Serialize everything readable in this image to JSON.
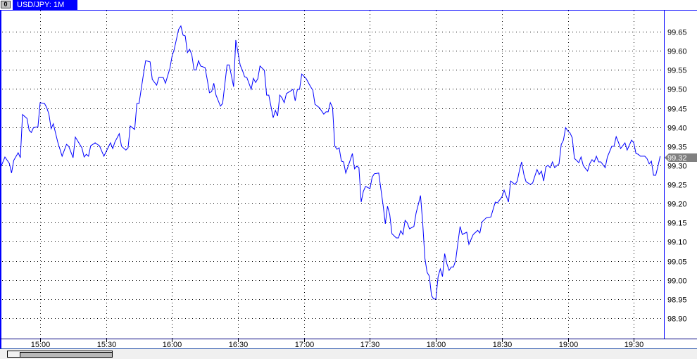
{
  "window": {
    "tab_label": "USD/JPY: 1M",
    "tab_icon": "chart-window-icon",
    "tab_icon_glyph": "0"
  },
  "colors": {
    "line": "#0000ff",
    "frame": "#0000ff",
    "axis_line": "#000080",
    "grid": "#000000",
    "price_badge": "#808080"
  },
  "chart_data": {
    "type": "line",
    "symbol": "USD/JPY",
    "timeframe": "1M",
    "grid": true,
    "y_axis_position": "right",
    "ylim": [
      98.85,
      99.69
    ],
    "xlim": [
      "14:42",
      "19:42"
    ],
    "y_ticks": [
      "99.65",
      "99.60",
      "99.55",
      "99.50",
      "99.45",
      "99.40",
      "99.35",
      "99.30",
      "99.25",
      "99.20",
      "99.15",
      "99.10",
      "99.05",
      "99.00",
      "98.95",
      "98.90"
    ],
    "x_ticks": [
      "15:00",
      "15:30",
      "16:00",
      "16:30",
      "17:00",
      "17:30",
      "18:00",
      "18:30",
      "19:00",
      "19:30"
    ],
    "current_price": "99.32",
    "points": [
      [
        "14:42",
        99.294
      ],
      [
        "14:44",
        99.322
      ],
      [
        "14:46",
        99.305
      ],
      [
        "14:47",
        99.28
      ],
      [
        "14:48",
        99.313
      ],
      [
        "14:50",
        99.333
      ],
      [
        "14:51",
        99.32
      ],
      [
        "14:52",
        99.433
      ],
      [
        "14:54",
        99.423
      ],
      [
        "14:55",
        99.392
      ],
      [
        "14:56",
        99.386
      ],
      [
        "14:57",
        99.399
      ],
      [
        "14:59",
        99.401
      ],
      [
        "15:00",
        99.464
      ],
      [
        "15:02",
        99.462
      ],
      [
        "15:03",
        99.451
      ],
      [
        "15:04",
        99.434
      ],
      [
        "15:05",
        99.396
      ],
      [
        "15:06",
        99.409
      ],
      [
        "15:08",
        99.361
      ],
      [
        "15:10",
        99.324
      ],
      [
        "15:12",
        99.355
      ],
      [
        "15:13",
        99.35
      ],
      [
        "15:15",
        99.32
      ],
      [
        "15:16",
        99.374
      ],
      [
        "15:19",
        99.346
      ],
      [
        "15:20",
        99.322
      ],
      [
        "15:21",
        99.329
      ],
      [
        "15:22",
        99.324
      ],
      [
        "15:23",
        99.351
      ],
      [
        "15:25",
        99.359
      ],
      [
        "15:27",
        99.351
      ],
      [
        "15:29",
        99.324
      ],
      [
        "15:32",
        99.359
      ],
      [
        "15:33",
        99.344
      ],
      [
        "15:34",
        99.361
      ],
      [
        "15:36",
        99.383
      ],
      [
        "15:37",
        99.35
      ],
      [
        "15:39",
        99.34
      ],
      [
        "15:40",
        99.346
      ],
      [
        "15:41",
        99.403
      ],
      [
        "15:43",
        99.394
      ],
      [
        "15:44",
        99.462
      ],
      [
        "15:45",
        99.462
      ],
      [
        "15:47",
        99.539
      ],
      [
        "15:48",
        99.574
      ],
      [
        "15:50",
        99.571
      ],
      [
        "15:51",
        99.525
      ],
      [
        "15:53",
        99.51
      ],
      [
        "15:54",
        99.53
      ],
      [
        "15:56",
        99.53
      ],
      [
        "15:57",
        99.515
      ],
      [
        "15:59",
        99.554
      ],
      [
        "16:00",
        99.586
      ],
      [
        "16:01",
        99.604
      ],
      [
        "16:03",
        99.656
      ],
      [
        "16:04",
        99.665
      ],
      [
        "16:05",
        99.641
      ],
      [
        "16:06",
        99.639
      ],
      [
        "16:07",
        99.595
      ],
      [
        "16:08",
        99.604
      ],
      [
        "16:09",
        99.589
      ],
      [
        "16:10",
        99.55
      ],
      [
        "16:11",
        99.55
      ],
      [
        "16:12",
        99.574
      ],
      [
        "16:13",
        99.56
      ],
      [
        "16:15",
        99.556
      ],
      [
        "16:16",
        99.525
      ],
      [
        "16:17",
        99.49
      ],
      [
        "16:18",
        99.493
      ],
      [
        "16:19",
        99.515
      ],
      [
        "16:20",
        99.484
      ],
      [
        "16:22",
        99.455
      ],
      [
        "16:23",
        99.462
      ],
      [
        "16:25",
        99.563
      ],
      [
        "16:26",
        99.563
      ],
      [
        "16:28",
        99.506
      ],
      [
        "16:29",
        99.628
      ],
      [
        "16:31",
        99.562
      ],
      [
        "16:32",
        99.549
      ],
      [
        "16:33",
        99.532
      ],
      [
        "16:34",
        99.53
      ],
      [
        "16:36",
        99.499
      ],
      [
        "16:37",
        99.528
      ],
      [
        "16:38",
        99.517
      ],
      [
        "16:39",
        99.527
      ],
      [
        "16:40",
        99.56
      ],
      [
        "16:42",
        99.549
      ],
      [
        "16:43",
        99.484
      ],
      [
        "16:44",
        99.484
      ],
      [
        "16:46",
        99.425
      ],
      [
        "16:47",
        99.444
      ],
      [
        "16:48",
        99.429
      ],
      [
        "16:49",
        99.484
      ],
      [
        "16:50",
        99.477
      ],
      [
        "16:51",
        99.464
      ],
      [
        "16:52",
        99.488
      ],
      [
        "16:54",
        99.495
      ],
      [
        "16:55",
        99.499
      ],
      [
        "16:56",
        99.469
      ],
      [
        "16:57",
        99.499
      ],
      [
        "16:58",
        99.499
      ],
      [
        "16:59",
        99.539
      ],
      [
        "17:01",
        99.527
      ],
      [
        "17:03",
        99.506
      ],
      [
        "17:04",
        99.497
      ],
      [
        "17:05",
        99.46
      ],
      [
        "17:07",
        99.451
      ],
      [
        "17:09",
        99.434
      ],
      [
        "17:10",
        99.44
      ],
      [
        "17:11",
        99.44
      ],
      [
        "17:12",
        99.464
      ],
      [
        "17:13",
        99.451
      ],
      [
        "17:14",
        99.351
      ],
      [
        "17:15",
        99.342
      ],
      [
        "17:16",
        99.346
      ],
      [
        "17:17",
        99.311
      ],
      [
        "17:18",
        99.309
      ],
      [
        "17:19",
        99.28
      ],
      [
        "17:21",
        99.313
      ],
      [
        "17:22",
        99.331
      ],
      [
        "17:23",
        99.291
      ],
      [
        "17:24",
        99.298
      ],
      [
        "17:25",
        99.294
      ],
      [
        "17:26",
        99.204
      ],
      [
        "17:27",
        99.232
      ],
      [
        "17:28",
        99.245
      ],
      [
        "17:30",
        99.239
      ],
      [
        "17:31",
        99.269
      ],
      [
        "17:32",
        99.278
      ],
      [
        "17:34",
        99.28
      ],
      [
        "17:36",
        99.195
      ],
      [
        "17:37",
        99.147
      ],
      [
        "17:38",
        99.193
      ],
      [
        "17:39",
        99.171
      ],
      [
        "17:40",
        99.121
      ],
      [
        "17:42",
        99.11
      ],
      [
        "17:43",
        99.11
      ],
      [
        "17:44",
        99.129
      ],
      [
        "17:45",
        99.119
      ],
      [
        "17:46",
        99.156
      ],
      [
        "17:47",
        99.149
      ],
      [
        "17:48",
        99.134
      ],
      [
        "17:50",
        99.14
      ],
      [
        "17:51",
        99.175
      ],
      [
        "17:52",
        99.198
      ],
      [
        "17:53",
        99.221
      ],
      [
        "17:54",
        99.149
      ],
      [
        "17:55",
        99.057
      ],
      [
        "17:56",
        99.02
      ],
      [
        "17:57",
        99.01
      ],
      [
        "17:58",
        98.959
      ],
      [
        "17:59",
        98.95
      ],
      [
        "18:00",
        98.95
      ],
      [
        "18:01",
        99.009
      ],
      [
        "18:02",
        99.029
      ],
      [
        "18:03",
        99.009
      ],
      [
        "18:04",
        99.069
      ],
      [
        "18:05",
        99.042
      ],
      [
        "18:06",
        99.025
      ],
      [
        "18:07",
        99.034
      ],
      [
        "18:08",
        99.034
      ],
      [
        "18:09",
        99.051
      ],
      [
        "18:10",
        99.097
      ],
      [
        "18:11",
        99.14
      ],
      [
        "18:12",
        99.119
      ],
      [
        "18:14",
        99.125
      ],
      [
        "18:15",
        99.093
      ],
      [
        "18:17",
        99.119
      ],
      [
        "18:19",
        99.13
      ],
      [
        "18:20",
        99.123
      ],
      [
        "18:21",
        99.152
      ],
      [
        "18:23",
        99.163
      ],
      [
        "18:25",
        99.165
      ],
      [
        "18:27",
        99.204
      ],
      [
        "18:28",
        99.202
      ],
      [
        "18:30",
        99.217
      ],
      [
        "18:31",
        99.235
      ],
      [
        "18:33",
        99.204
      ],
      [
        "18:34",
        99.259
      ],
      [
        "18:36",
        99.25
      ],
      [
        "18:37",
        99.259
      ],
      [
        "18:38",
        99.287
      ],
      [
        "18:39",
        99.309
      ],
      [
        "18:40",
        99.276
      ],
      [
        "18:41",
        99.257
      ],
      [
        "18:43",
        99.25
      ],
      [
        "18:44",
        99.254
      ],
      [
        "18:45",
        99.272
      ],
      [
        "18:46",
        99.289
      ],
      [
        "18:47",
        99.276
      ],
      [
        "18:48",
        99.285
      ],
      [
        "18:49",
        99.259
      ],
      [
        "18:50",
        99.296
      ],
      [
        "18:51",
        99.3
      ],
      [
        "18:52",
        99.294
      ],
      [
        "18:53",
        99.309
      ],
      [
        "18:54",
        99.294
      ],
      [
        "18:56",
        99.304
      ],
      [
        "18:57",
        99.355
      ],
      [
        "18:58",
        99.366
      ],
      [
        "18:59",
        99.399
      ],
      [
        "19:00",
        99.39
      ],
      [
        "19:01",
        99.385
      ],
      [
        "19:02",
        99.372
      ],
      [
        "19:03",
        99.318
      ],
      [
        "19:04",
        99.313
      ],
      [
        "19:05",
        99.307
      ],
      [
        "19:06",
        99.322
      ],
      [
        "19:07",
        99.3
      ],
      [
        "19:08",
        99.292
      ],
      [
        "19:09",
        99.285
      ],
      [
        "19:10",
        99.305
      ],
      [
        "19:11",
        99.315
      ],
      [
        "19:12",
        99.309
      ],
      [
        "19:13",
        99.324
      ],
      [
        "19:14",
        99.309
      ],
      [
        "19:15",
        99.309
      ],
      [
        "19:17",
        99.294
      ],
      [
        "19:18",
        99.322
      ],
      [
        "19:20",
        99.35
      ],
      [
        "19:21",
        99.35
      ],
      [
        "19:22",
        99.375
      ],
      [
        "19:23",
        99.361
      ],
      [
        "19:24",
        99.344
      ],
      [
        "19:26",
        99.359
      ],
      [
        "19:27",
        99.34
      ],
      [
        "19:29",
        99.366
      ],
      [
        "19:30",
        99.359
      ],
      [
        "19:31",
        99.331
      ],
      [
        "19:32",
        99.329
      ],
      [
        "19:33",
        99.324
      ],
      [
        "19:35",
        99.324
      ],
      [
        "19:36",
        99.318
      ],
      [
        "19:37",
        99.304
      ],
      [
        "19:38",
        99.311
      ],
      [
        "19:39",
        99.274
      ],
      [
        "19:40",
        99.274
      ],
      [
        "19:41",
        99.298
      ],
      [
        "19:42",
        99.324
      ]
    ]
  }
}
